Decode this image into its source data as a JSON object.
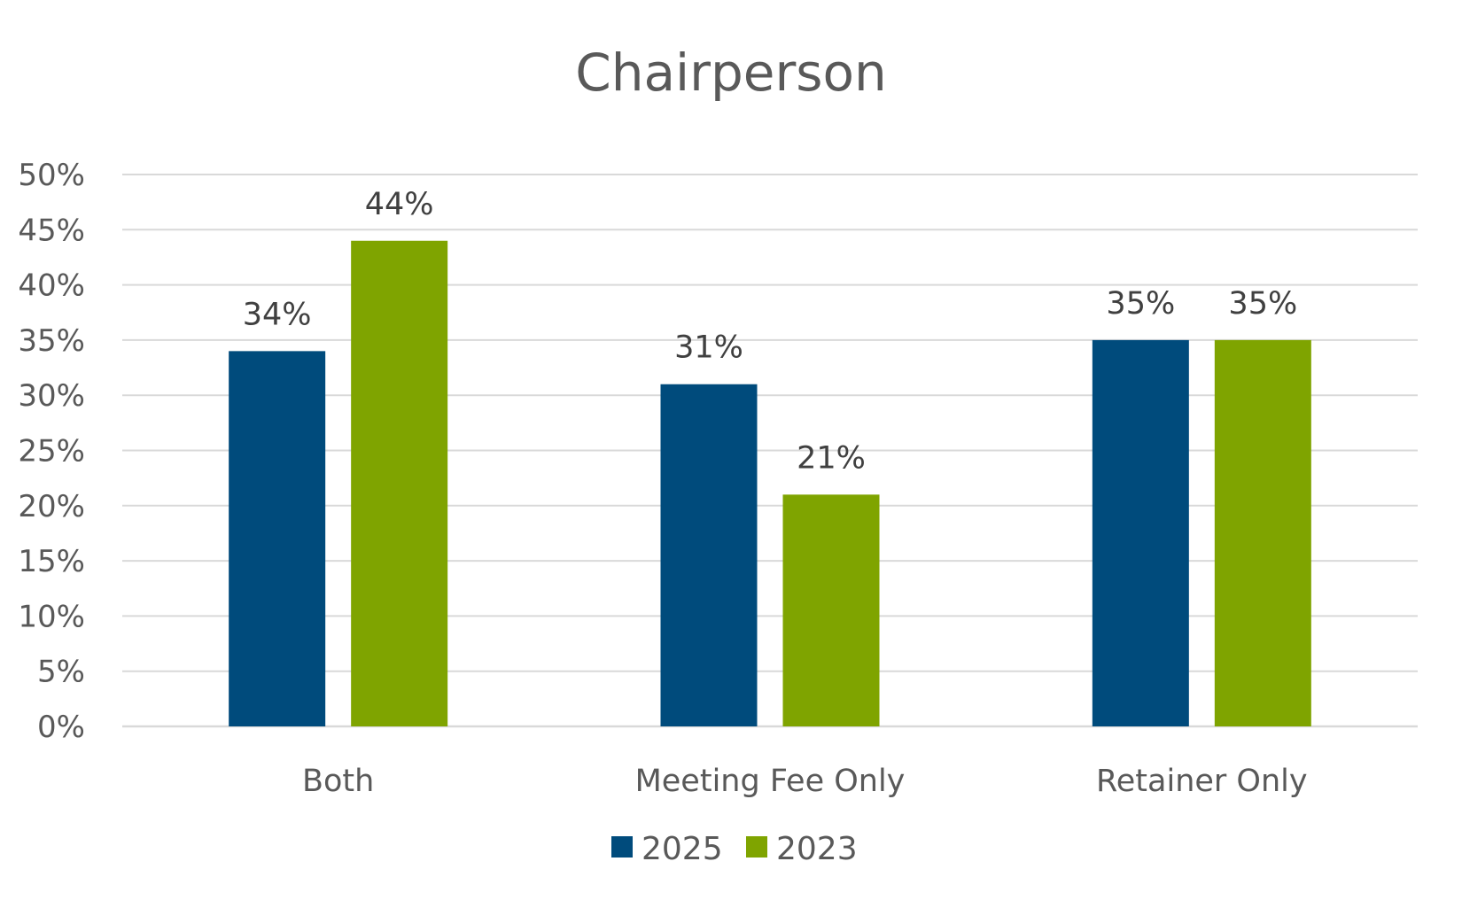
{
  "chart_data": {
    "type": "bar",
    "title": "Chairperson",
    "xlabel": "",
    "ylabel": "",
    "categories": [
      "Both",
      "Meeting Fee Only",
      "Retainer Only"
    ],
    "series": [
      {
        "name": "2025",
        "color": "#004b7c",
        "values": [
          34,
          31,
          35
        ],
        "labels": [
          "34%",
          "31%",
          "35%"
        ]
      },
      {
        "name": "2023",
        "color": "#7fa400",
        "values": [
          44,
          21,
          35
        ],
        "labels": [
          "44%",
          "21%",
          "35%"
        ]
      }
    ],
    "ylim": [
      0,
      50
    ],
    "yticks": [
      0,
      5,
      10,
      15,
      20,
      25,
      30,
      35,
      40,
      45,
      50
    ],
    "ytick_labels": [
      "0%",
      "5%",
      "10%",
      "15%",
      "20%",
      "25%",
      "30%",
      "35%",
      "40%",
      "45%",
      "50%"
    ],
    "grid": true,
    "legend_position": "bottom"
  }
}
